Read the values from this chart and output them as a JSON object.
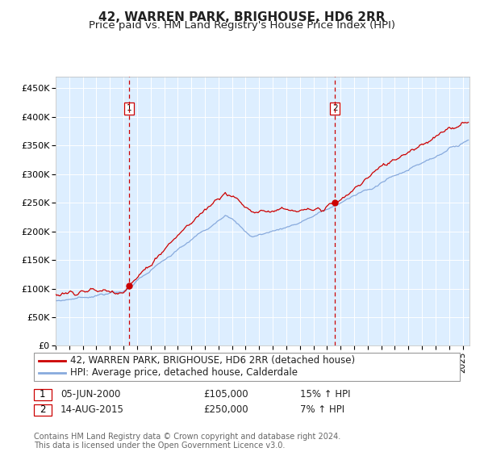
{
  "title": "42, WARREN PARK, BRIGHOUSE, HD6 2RR",
  "subtitle": "Price paid vs. HM Land Registry's House Price Index (HPI)",
  "ylim": [
    0,
    470000
  ],
  "yticks": [
    0,
    50000,
    100000,
    150000,
    200000,
    250000,
    300000,
    350000,
    400000,
    450000
  ],
  "ytick_labels": [
    "£0",
    "£50K",
    "£100K",
    "£150K",
    "£200K",
    "£250K",
    "£300K",
    "£350K",
    "£400K",
    "£450K"
  ],
  "year_start": 1995.0,
  "year_end": 2025.5,
  "plot_bg_color": "#ddeeff",
  "grid_color": "#ffffff",
  "red_line_color": "#cc0000",
  "blue_line_color": "#88aadd",
  "marker_color": "#cc0000",
  "vline_color": "#cc0000",
  "transaction1_year": 2000.43,
  "transaction1_price": 105000,
  "transaction1_label": "1",
  "transaction2_year": 2015.62,
  "transaction2_price": 250000,
  "transaction2_label": "2",
  "legend_line1": "42, WARREN PARK, BRIGHOUSE, HD6 2RR (detached house)",
  "legend_line2": "HPI: Average price, detached house, Calderdale",
  "table_row1_num": "1",
  "table_row1_date": "05-JUN-2000",
  "table_row1_price": "£105,000",
  "table_row1_hpi": "15% ↑ HPI",
  "table_row2_num": "2",
  "table_row2_date": "14-AUG-2015",
  "table_row2_price": "£250,000",
  "table_row2_hpi": "7% ↑ HPI",
  "footer": "Contains HM Land Registry data © Crown copyright and database right 2024.\nThis data is licensed under the Open Government Licence v3.0."
}
